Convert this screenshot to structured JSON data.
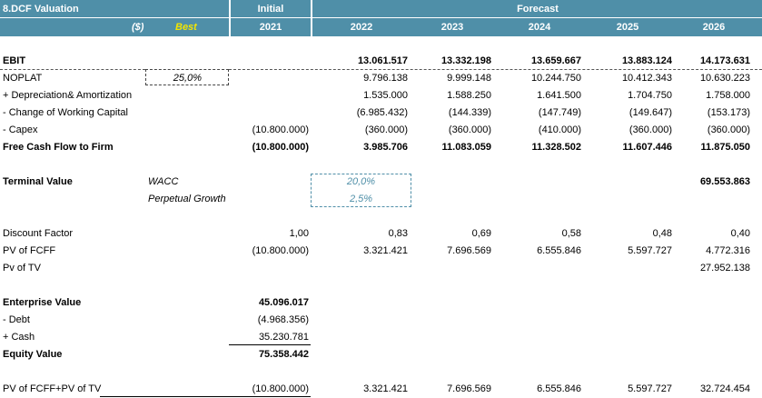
{
  "header": {
    "title": "8.DCF Valuation",
    "currency": "($)",
    "scenario": "Best",
    "initial_label": "Initial",
    "forecast_label": "Forecast",
    "years": [
      "2021",
      "2022",
      "2023",
      "2024",
      "2025",
      "2026"
    ]
  },
  "colors": {
    "header_bg": "#4f8fa8",
    "scenario_text": "#f2e500",
    "input_text": "#4f8fa8"
  },
  "inputs": {
    "noplat_rate": "25,0%",
    "wacc_label": "WACC",
    "wacc": "20,0%",
    "growth_label": "Perpetual Growth",
    "growth": "2,5%"
  },
  "rows": {
    "ebit": {
      "label": "EBIT",
      "values": [
        "",
        "13.061.517",
        "13.332.198",
        "13.659.667",
        "13.883.124",
        "14.173.631"
      ]
    },
    "noplat": {
      "label": "NOPLAT",
      "values": [
        "",
        "9.796.138",
        "9.999.148",
        "10.244.750",
        "10.412.343",
        "10.630.223"
      ]
    },
    "dep": {
      "label": " + Depreciation& Amortization",
      "values": [
        "",
        "1.535.000",
        "1.588.250",
        "1.641.500",
        "1.704.750",
        "1.758.000"
      ]
    },
    "wc": {
      "label": " - Change of Working Capital",
      "values": [
        "",
        "(6.985.432)",
        "(144.339)",
        "(147.749)",
        "(149.647)",
        "(153.173)"
      ]
    },
    "capex": {
      "label": " - Capex",
      "values": [
        "(10.800.000)",
        "(360.000)",
        "(360.000)",
        "(410.000)",
        "(360.000)",
        "(360.000)"
      ]
    },
    "fcff": {
      "label": "Free Cash Flow to Firm",
      "values": [
        "(10.800.000)",
        "3.985.706",
        "11.083.059",
        "11.328.502",
        "11.607.446",
        "11.875.050"
      ]
    },
    "tv": {
      "label": "Terminal Value",
      "values": [
        "",
        "",
        "",
        "",
        "",
        "69.553.863"
      ]
    },
    "df": {
      "label": "Discount Factor",
      "values": [
        "1,00",
        "0,83",
        "0,69",
        "0,58",
        "0,48",
        "0,40"
      ]
    },
    "pvfcff": {
      "label": "PV of FCFF",
      "values": [
        "(10.800.000)",
        "3.321.421",
        "7.696.569",
        "6.555.846",
        "5.597.727",
        "4.772.316"
      ]
    },
    "pvtv": {
      "label": "Pv of TV",
      "values": [
        "",
        "",
        "",
        "",
        "",
        "27.952.138"
      ]
    },
    "total": {
      "label": "PV of FCFF+PV of TV",
      "values": [
        "(10.800.000)",
        "3.321.421",
        "7.696.569",
        "6.555.846",
        "5.597.727",
        "32.724.454"
      ]
    }
  },
  "equity": {
    "ev_label": "Enterprise Value",
    "ev": "45.096.017",
    "debt_label": " - Debt",
    "debt": "(4.968.356)",
    "cash_label": " + Cash",
    "cash": "35.230.781",
    "equity_label": "Equity Value",
    "equity": "75.358.442"
  }
}
